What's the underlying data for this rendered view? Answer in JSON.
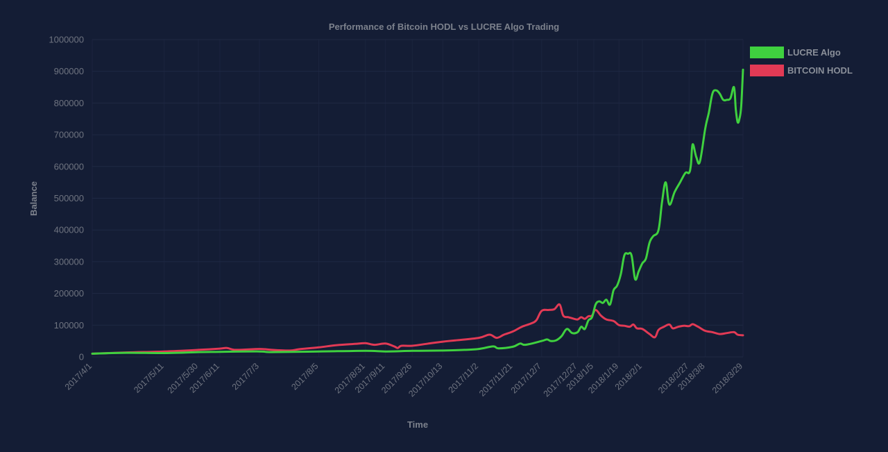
{
  "chart_data": {
    "type": "line",
    "title": "Performance of Bitcoin HODL vs LUCRE Algo Trading",
    "xlabel": "Time",
    "ylabel": "Balance",
    "ylim": [
      0,
      1000000
    ],
    "yticks": [
      0,
      100000,
      200000,
      300000,
      400000,
      500000,
      600000,
      700000,
      800000,
      900000,
      1000000
    ],
    "x_range": [
      "2017-04-01",
      "2018-03-29"
    ],
    "xticks": [
      {
        "label": "2017/4/1",
        "date": "2017-04-01"
      },
      {
        "label": "2017/5/11",
        "date": "2017-05-11"
      },
      {
        "label": "2017/5/30",
        "date": "2017-05-30"
      },
      {
        "label": "2017/6/11",
        "date": "2017-06-11"
      },
      {
        "label": "2017/7/3",
        "date": "2017-07-03"
      },
      {
        "label": "2017/8/5",
        "date": "2017-08-05"
      },
      {
        "label": "2017/8/31",
        "date": "2017-08-31"
      },
      {
        "label": "2017/9/11",
        "date": "2017-09-11"
      },
      {
        "label": "2017/9/26",
        "date": "2017-09-26"
      },
      {
        "label": "2017/10/13",
        "date": "2017-10-13"
      },
      {
        "label": "2017/11/2",
        "date": "2017-11-02"
      },
      {
        "label": "2017/11/21",
        "date": "2017-11-21"
      },
      {
        "label": "2017/12/7",
        "date": "2017-12-07"
      },
      {
        "label": "2017/12/27",
        "date": "2017-12-27"
      },
      {
        "label": "2018/1/5",
        "date": "2018-01-05"
      },
      {
        "label": "2018/1/19",
        "date": "2018-01-19"
      },
      {
        "label": "2018/2/1",
        "date": "2018-02-01"
      },
      {
        "label": "2018/2/27",
        "date": "2018-02-27"
      },
      {
        "label": "2018/3/8",
        "date": "2018-03-08"
      },
      {
        "label": "2018/3/29",
        "date": "2018-03-29"
      }
    ],
    "grid": true,
    "legend_position": "top-right",
    "series": [
      {
        "name": "LUCRE Algo",
        "color": "#3fd13f",
        "points": [
          [
            "2017-04-01",
            10000
          ],
          [
            "2017-04-20",
            13000
          ],
          [
            "2017-05-11",
            12000
          ],
          [
            "2017-05-30",
            15000
          ],
          [
            "2017-06-11",
            16000
          ],
          [
            "2017-07-03",
            17000
          ],
          [
            "2017-07-10",
            15000
          ],
          [
            "2017-08-05",
            17000
          ],
          [
            "2017-08-31",
            19000
          ],
          [
            "2017-09-11",
            17000
          ],
          [
            "2017-09-26",
            19000
          ],
          [
            "2017-10-13",
            20000
          ],
          [
            "2017-10-25",
            22000
          ],
          [
            "2017-11-02",
            25000
          ],
          [
            "2017-11-10",
            33000
          ],
          [
            "2017-11-13",
            27000
          ],
          [
            "2017-11-21",
            32000
          ],
          [
            "2017-11-25",
            42000
          ],
          [
            "2017-11-28",
            38000
          ],
          [
            "2017-12-07",
            50000
          ],
          [
            "2017-12-10",
            55000
          ],
          [
            "2017-12-12",
            50000
          ],
          [
            "2017-12-15",
            52000
          ],
          [
            "2017-12-18",
            65000
          ],
          [
            "2017-12-21",
            88000
          ],
          [
            "2017-12-24",
            75000
          ],
          [
            "2017-12-27",
            78000
          ],
          [
            "2017-12-29",
            95000
          ],
          [
            "2017-12-31",
            88000
          ],
          [
            "2018-01-02",
            115000
          ],
          [
            "2018-01-04",
            125000
          ],
          [
            "2018-01-06",
            165000
          ],
          [
            "2018-01-08",
            175000
          ],
          [
            "2018-01-10",
            170000
          ],
          [
            "2018-01-12",
            180000
          ],
          [
            "2018-01-14",
            165000
          ],
          [
            "2018-01-16",
            210000
          ],
          [
            "2018-01-18",
            225000
          ],
          [
            "2018-01-20",
            260000
          ],
          [
            "2018-01-22",
            320000
          ],
          [
            "2018-01-24",
            325000
          ],
          [
            "2018-01-26",
            320000
          ],
          [
            "2018-01-28",
            245000
          ],
          [
            "2018-01-30",
            270000
          ],
          [
            "2018-02-01",
            295000
          ],
          [
            "2018-02-03",
            310000
          ],
          [
            "2018-02-05",
            360000
          ],
          [
            "2018-02-07",
            380000
          ],
          [
            "2018-02-10",
            400000
          ],
          [
            "2018-02-12",
            490000
          ],
          [
            "2018-02-14",
            550000
          ],
          [
            "2018-02-16",
            480000
          ],
          [
            "2018-02-19",
            520000
          ],
          [
            "2018-02-22",
            550000
          ],
          [
            "2018-02-25",
            580000
          ],
          [
            "2018-02-27",
            580000
          ],
          [
            "2018-02-28",
            605000
          ],
          [
            "2018-03-01",
            670000
          ],
          [
            "2018-03-03",
            630000
          ],
          [
            "2018-03-05",
            615000
          ],
          [
            "2018-03-08",
            720000
          ],
          [
            "2018-03-10",
            770000
          ],
          [
            "2018-03-12",
            830000
          ],
          [
            "2018-03-14",
            840000
          ],
          [
            "2018-03-16",
            830000
          ],
          [
            "2018-03-18",
            810000
          ],
          [
            "2018-03-20",
            810000
          ],
          [
            "2018-03-22",
            815000
          ],
          [
            "2018-03-24",
            850000
          ],
          [
            "2018-03-25",
            780000
          ],
          [
            "2018-03-26",
            740000
          ],
          [
            "2018-03-27",
            750000
          ],
          [
            "2018-03-28",
            790000
          ],
          [
            "2018-03-29",
            905000
          ]
        ]
      },
      {
        "name": "BITCOIN HODL",
        "color": "#e23a55",
        "points": [
          [
            "2017-04-01",
            10000
          ],
          [
            "2017-04-20",
            14000
          ],
          [
            "2017-05-11",
            17000
          ],
          [
            "2017-05-30",
            22000
          ],
          [
            "2017-06-11",
            26000
          ],
          [
            "2017-06-15",
            28000
          ],
          [
            "2017-06-20",
            22000
          ],
          [
            "2017-07-03",
            25000
          ],
          [
            "2017-07-10",
            22000
          ],
          [
            "2017-07-20",
            20000
          ],
          [
            "2017-07-25",
            24000
          ],
          [
            "2017-08-05",
            30000
          ],
          [
            "2017-08-15",
            37000
          ],
          [
            "2017-08-25",
            41000
          ],
          [
            "2017-08-31",
            43000
          ],
          [
            "2017-09-05",
            38000
          ],
          [
            "2017-09-11",
            42000
          ],
          [
            "2017-09-16",
            33000
          ],
          [
            "2017-09-18",
            28000
          ],
          [
            "2017-09-20",
            35000
          ],
          [
            "2017-09-26",
            35000
          ],
          [
            "2017-10-05",
            42000
          ],
          [
            "2017-10-13",
            48000
          ],
          [
            "2017-10-20",
            52000
          ],
          [
            "2017-11-02",
            60000
          ],
          [
            "2017-11-08",
            70000
          ],
          [
            "2017-11-12",
            60000
          ],
          [
            "2017-11-16",
            70000
          ],
          [
            "2017-11-21",
            80000
          ],
          [
            "2017-11-26",
            95000
          ],
          [
            "2017-12-01",
            105000
          ],
          [
            "2017-12-04",
            115000
          ],
          [
            "2017-12-07",
            145000
          ],
          [
            "2017-12-11",
            148000
          ],
          [
            "2017-12-14",
            150000
          ],
          [
            "2017-12-17",
            165000
          ],
          [
            "2017-12-19",
            130000
          ],
          [
            "2017-12-22",
            125000
          ],
          [
            "2017-12-25",
            120000
          ],
          [
            "2017-12-27",
            118000
          ],
          [
            "2017-12-29",
            125000
          ],
          [
            "2017-12-31",
            120000
          ],
          [
            "2018-01-02",
            128000
          ],
          [
            "2018-01-04",
            130000
          ],
          [
            "2018-01-06",
            148000
          ],
          [
            "2018-01-09",
            130000
          ],
          [
            "2018-01-12",
            118000
          ],
          [
            "2018-01-16",
            113000
          ],
          [
            "2018-01-19",
            100000
          ],
          [
            "2018-01-22",
            98000
          ],
          [
            "2018-01-25",
            95000
          ],
          [
            "2018-01-27",
            102000
          ],
          [
            "2018-01-29",
            90000
          ],
          [
            "2018-02-01",
            88000
          ],
          [
            "2018-02-05",
            72000
          ],
          [
            "2018-02-08",
            62000
          ],
          [
            "2018-02-10",
            85000
          ],
          [
            "2018-02-13",
            95000
          ],
          [
            "2018-02-16",
            102000
          ],
          [
            "2018-02-18",
            90000
          ],
          [
            "2018-02-21",
            95000
          ],
          [
            "2018-02-24",
            98000
          ],
          [
            "2018-02-27",
            97000
          ],
          [
            "2018-03-01",
            103000
          ],
          [
            "2018-03-04",
            95000
          ],
          [
            "2018-03-08",
            82000
          ],
          [
            "2018-03-12",
            78000
          ],
          [
            "2018-03-16",
            72000
          ],
          [
            "2018-03-20",
            75000
          ],
          [
            "2018-03-24",
            78000
          ],
          [
            "2018-03-26",
            70000
          ],
          [
            "2018-03-29",
            68000
          ]
        ]
      }
    ]
  }
}
